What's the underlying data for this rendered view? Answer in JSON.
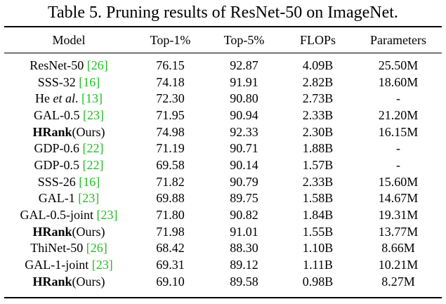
{
  "caption": "Table 5. Pruning results of ResNet-50 on ImageNet.",
  "colors": {
    "citation": "#1fbf1f",
    "text": "#000000"
  },
  "columns": [
    "Model",
    "Top-1%",
    "Top-5%",
    "FLOPs",
    "Parameters"
  ],
  "rows": [
    {
      "pre": "ResNet-50 ",
      "bold": "",
      "ital": "",
      "post": "",
      "ref": "[26]",
      "top1": "76.15",
      "top5": "92.87",
      "flops": "4.09B",
      "params": "25.50M"
    },
    {
      "pre": "SSS-32 ",
      "bold": "",
      "ital": "",
      "post": "",
      "ref": "[16]",
      "top1": "74.18",
      "top5": "91.91",
      "flops": "2.82B",
      "params": "18.60M"
    },
    {
      "pre": "He ",
      "bold": "",
      "ital": "et al",
      "post": ". ",
      "ref": "[13]",
      "top1": "72.30",
      "top5": "90.80",
      "flops": "2.73B",
      "params": "-"
    },
    {
      "pre": "GAL-0.5 ",
      "bold": "",
      "ital": "",
      "post": "",
      "ref": "[23]",
      "top1": "71.95",
      "top5": "90.94",
      "flops": "2.33B",
      "params": "21.20M"
    },
    {
      "pre": "",
      "bold": "HRank",
      "ital": "",
      "post": "(Ours)",
      "ref": "",
      "top1": "74.98",
      "top5": "92.33",
      "flops": "2.30B",
      "params": "16.15M"
    },
    {
      "pre": "GDP-0.6 ",
      "bold": "",
      "ital": "",
      "post": "",
      "ref": "[22]",
      "top1": "71.19",
      "top5": "90.71",
      "flops": "1.88B",
      "params": "-"
    },
    {
      "pre": "GDP-0.5 ",
      "bold": "",
      "ital": "",
      "post": "",
      "ref": "[22]",
      "top1": "69.58",
      "top5": "90.14",
      "flops": "1.57B",
      "params": "-"
    },
    {
      "pre": "SSS-26 ",
      "bold": "",
      "ital": "",
      "post": "",
      "ref": "[16]",
      "top1": "71.82",
      "top5": "90.79",
      "flops": "2.33B",
      "params": "15.60M"
    },
    {
      "pre": "GAL-1 ",
      "bold": "",
      "ital": "",
      "post": "",
      "ref": "[23]",
      "top1": "69.88",
      "top5": "89.75",
      "flops": "1.58B",
      "params": "14.67M"
    },
    {
      "pre": "GAL-0.5-joint ",
      "bold": "",
      "ital": "",
      "post": "",
      "ref": "[23]",
      "top1": "71.80",
      "top5": "90.82",
      "flops": "1.84B",
      "params": "19.31M"
    },
    {
      "pre": "",
      "bold": "HRank",
      "ital": "",
      "post": "(Ours)",
      "ref": "",
      "top1": "71.98",
      "top5": "91.01",
      "flops": "1.55B",
      "params": "13.77M"
    },
    {
      "pre": "ThiNet-50 ",
      "bold": "",
      "ital": "",
      "post": "",
      "ref": "[26]",
      "top1": "68.42",
      "top5": "88.30",
      "flops": "1.10B",
      "params": "8.66M"
    },
    {
      "pre": "GAL-1-joint ",
      "bold": "",
      "ital": "",
      "post": "",
      "ref": "[23]",
      "top1": "69.31",
      "top5": "89.12",
      "flops": "1.11B",
      "params": "10.21M"
    },
    {
      "pre": "",
      "bold": "HRank",
      "ital": "",
      "post": "(Ours)",
      "ref": "",
      "top1": "69.10",
      "top5": "89.58",
      "flops": "0.98B",
      "params": "8.27M"
    }
  ]
}
